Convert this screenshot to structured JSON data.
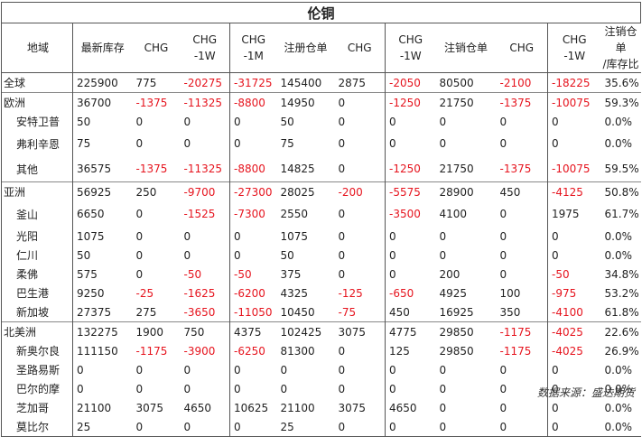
{
  "title": "伦铜",
  "headers": [
    "地域",
    "最新库存",
    "CHG",
    "CHG\n-1W",
    "CHG\n-1M",
    "注册仓单",
    "CHG",
    "CHG\n-1W",
    "注销仓单",
    "CHG",
    "CHG\n-1W",
    "注销仓单\n/库存比"
  ],
  "rows": [
    {
      "cells": [
        "全球",
        "225900",
        "775",
        "-20275",
        "-31725",
        "145400",
        "2875",
        "-2050",
        "80500",
        "-2100",
        "-18225",
        "35.6%"
      ],
      "region": true,
      "sep": true
    },
    {
      "cells": [
        "欧洲",
        "36700",
        "-1375",
        "-11325",
        "-8800",
        "14950",
        "0",
        "-1250",
        "21750",
        "-1375",
        "-10075",
        "59.3%"
      ],
      "region": true,
      "sep": true
    },
    {
      "cells": [
        "安特卫普",
        "50",
        "0",
        "0",
        "0",
        "50",
        "0",
        "0",
        "0",
        "0",
        "0",
        "0.0%"
      ]
    },
    {
      "cells": [
        "弗利辛恩",
        "75",
        "0",
        "0",
        "0",
        "75",
        "0",
        "0",
        "0",
        "0",
        "0",
        "0.0%"
      ],
      "gap": true
    },
    {
      "cells": [
        "其他",
        "36575",
        "-1375",
        "-11325",
        "-8800",
        "14825",
        "0",
        "-1250",
        "21750",
        "-1375",
        "-10075",
        "59.5%"
      ],
      "gap": true
    },
    {
      "cells": [
        "亚洲",
        "56925",
        "250",
        "-9700",
        "-27300",
        "28025",
        "-200",
        "-5575",
        "28900",
        "450",
        "-4125",
        "50.8%"
      ],
      "region": true,
      "sep": true
    },
    {
      "cells": [
        "釜山",
        "6650",
        "0",
        "-1525",
        "-7300",
        "2550",
        "0",
        "-3500",
        "4100",
        "0",
        "1975",
        "61.7%"
      ],
      "gap": true
    },
    {
      "cells": [
        "光阳",
        "1075",
        "0",
        "0",
        "0",
        "1075",
        "0",
        "0",
        "0",
        "0",
        "0",
        "0.0%"
      ]
    },
    {
      "cells": [
        "仁川",
        "50",
        "0",
        "0",
        "0",
        "50",
        "0",
        "0",
        "0",
        "0",
        "0",
        "0.0%"
      ]
    },
    {
      "cells": [
        "柔佛",
        "575",
        "0",
        "-50",
        "-50",
        "375",
        "0",
        "0",
        "200",
        "0",
        "-50",
        "34.8%"
      ]
    },
    {
      "cells": [
        "巴生港",
        "9250",
        "-25",
        "-1625",
        "-6200",
        "4325",
        "-125",
        "-650",
        "4925",
        "100",
        "-975",
        "53.2%"
      ]
    },
    {
      "cells": [
        "新加坡",
        "27375",
        "275",
        "-3650",
        "-11050",
        "10450",
        "-75",
        "450",
        "16925",
        "350",
        "-4100",
        "61.8%"
      ]
    },
    {
      "cells": [
        "北美洲",
        "132275",
        "1900",
        "750",
        "4375",
        "102425",
        "3075",
        "4775",
        "29850",
        "-1175",
        "-4025",
        "22.6%"
      ],
      "region": true,
      "sep": true
    },
    {
      "cells": [
        "新奥尔良",
        "111150",
        "-1175",
        "-3900",
        "-6250",
        "81300",
        "0",
        "125",
        "29850",
        "-1175",
        "-4025",
        "26.9%"
      ]
    },
    {
      "cells": [
        "圣路易斯",
        "0",
        "0",
        "0",
        "0",
        "0",
        "0",
        "0",
        "0",
        "0",
        "0",
        "0.0%"
      ]
    },
    {
      "cells": [
        "巴尔的摩",
        "0",
        "0",
        "0",
        "0",
        "0",
        "0",
        "0",
        "0",
        "0",
        "0",
        "0.0%"
      ]
    },
    {
      "cells": [
        "芝加哥",
        "21100",
        "3075",
        "4650",
        "10625",
        "21100",
        "3075",
        "4650",
        "0",
        "0",
        "0",
        "0.0%"
      ]
    },
    {
      "cells": [
        "莫比尔",
        "25",
        "0",
        "0",
        "0",
        "25",
        "0",
        "0",
        "0",
        "0",
        "0",
        "0.0%"
      ]
    }
  ],
  "source": "数据来源：盛达期货"
}
